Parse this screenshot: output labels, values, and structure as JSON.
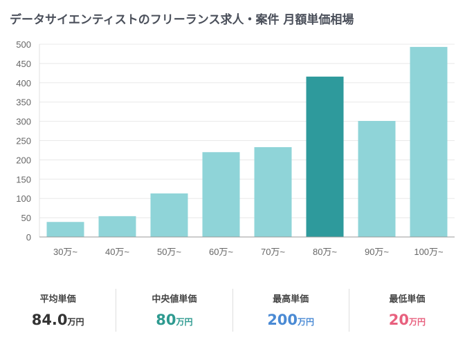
{
  "title": "データサイエンティストのフリーランス求人・案件 月額単価相場",
  "chart_data": {
    "type": "bar",
    "categories": [
      "30万~",
      "40万~",
      "50万~",
      "60万~",
      "70万~",
      "80万~",
      "90万~",
      "100万~"
    ],
    "values": [
      39,
      54,
      113,
      220,
      233,
      416,
      301,
      493
    ],
    "highlight_index": 5,
    "ylim": [
      0,
      500
    ],
    "yticks": [
      0,
      50,
      100,
      150,
      200,
      250,
      300,
      350,
      400,
      450,
      500
    ],
    "grid": true,
    "colors": {
      "bar": "#8fd4d8",
      "highlight": "#2e9a9c"
    }
  },
  "stats": [
    {
      "label": "平均単価",
      "value": "84.0",
      "unit": "万円",
      "color": "#333333"
    },
    {
      "label": "中央値単価",
      "value": "80",
      "unit": "万円",
      "color": "#2e9a90"
    },
    {
      "label": "最高単価",
      "value": "200",
      "unit": "万円",
      "color": "#4a8ad4"
    },
    {
      "label": "最低単価",
      "value": "20",
      "unit": "万円",
      "color": "#e8607e"
    }
  ]
}
